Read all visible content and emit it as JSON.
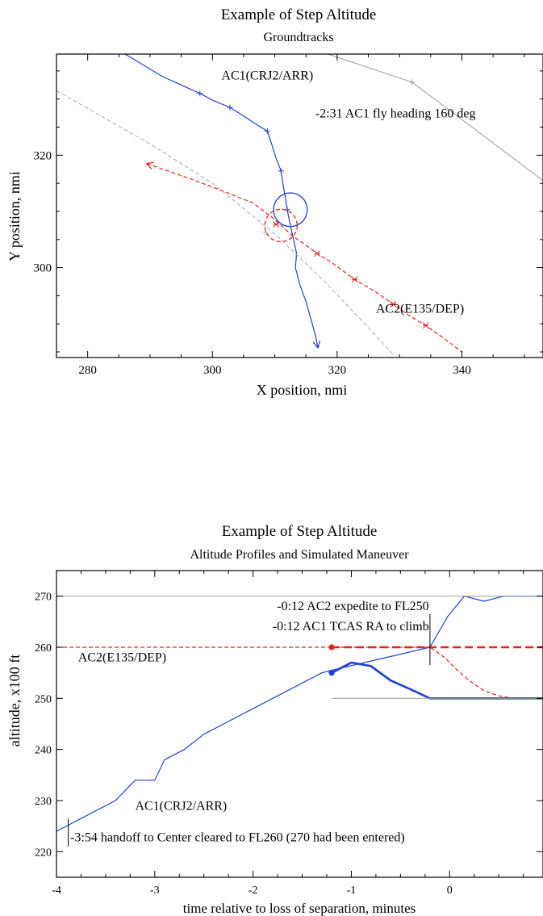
{
  "colors": {
    "ac1": "#1f3fd6",
    "ac2": "#e8231a",
    "ref_gray": "#999999",
    "ref_gray_dash": "#a8a8a8"
  },
  "charts": [
    {
      "type": "line",
      "title": "Example of Step Altitude",
      "subtitle": "Groundtracks",
      "xlabel": "X position, nmi",
      "ylabel": "Y position, nmi",
      "xlim": [
        275,
        353
      ],
      "ylim": [
        284,
        338
      ],
      "xticks": [
        280,
        300,
        320,
        340
      ],
      "yticks": [
        300,
        320
      ],
      "grid": false,
      "series": [
        {
          "name": "AC1(CRJ2/ARR)",
          "style": "solid-arrow",
          "color": "ac1",
          "x": [
            286,
            289,
            292,
            295,
            298,
            300,
            302.8,
            305,
            307,
            308.8,
            309.5,
            310.2,
            311,
            311.3,
            311.7,
            312,
            312.5,
            313,
            313.5,
            313.3,
            314,
            315,
            315.5,
            316,
            316.5,
            316.9
          ],
          "y": [
            338,
            336,
            334,
            332.5,
            331,
            329.8,
            328.5,
            327,
            325.5,
            324.3,
            322,
            319.5,
            317.2,
            315,
            312.5,
            310.3,
            307.5,
            305,
            302.5,
            300,
            297,
            294,
            292,
            290,
            288,
            285.8
          ],
          "marker_x": [
            298,
            302.8,
            308.8,
            311,
            312
          ],
          "marker_y": [
            331,
            328.5,
            324.3,
            317.2,
            310.3
          ]
        },
        {
          "name": "AC2(E135/DEP)",
          "style": "dashed-arrow",
          "color": "ac2",
          "x": [
            289.5,
            296,
            302,
            306.5,
            309.5,
            311.5,
            313,
            315,
            316.8,
            319,
            322.8,
            326,
            329,
            331.5,
            334.2,
            337,
            340
          ],
          "y": [
            318.5,
            316,
            313.5,
            311.5,
            309,
            307,
            305.5,
            304,
            302.5,
            301,
            297.9,
            295.8,
            293.5,
            291.5,
            289.7,
            287.5,
            285
          ],
          "marker_x": [
            310.2,
            316.8,
            322.8,
            329,
            334.2
          ],
          "marker_y": [
            307.7,
            302.5,
            297.9,
            293.5,
            289.7
          ]
        },
        {
          "style": "gray-solid",
          "color": "ref_gray",
          "x": [
            318.5,
            332,
            353
          ],
          "y": [
            338,
            333,
            315.5
          ],
          "marker_x": [
            332
          ],
          "marker_y": [
            333
          ]
        },
        {
          "style": "gray-dashed",
          "color": "ref_gray_dash",
          "x": [
            275,
            290,
            300,
            310,
            318,
            324,
            329
          ],
          "y": [
            331.5,
            322,
            315,
            306,
            297.5,
            290.5,
            284.5
          ],
          "marker_x": [
            308.5
          ],
          "marker_y": [
            306.3
          ]
        }
      ],
      "circles": [
        {
          "color": "ac1",
          "style": "solid",
          "cx": 312.5,
          "cy": 310.3,
          "r": 2.7
        },
        {
          "color": "ac2",
          "style": "dashed",
          "cx": 311,
          "cy": 307.5,
          "r": 2.6
        }
      ],
      "annotations": [
        {
          "text": "AC1(CRJ2/ARR)",
          "x": 308.8,
          "y": 333.5,
          "anchor": "middle"
        },
        {
          "text": "-2:31 AC1 fly heading 160 deg",
          "x": 316.5,
          "y": 326.7,
          "anchor": "start"
        },
        {
          "text": "AC2(E135/DEP)",
          "x": 326.2,
          "y": 292,
          "anchor": "start"
        }
      ]
    },
    {
      "type": "line",
      "title": "Example of Step Altitude",
      "subtitle": "Altitude Profiles and Simulated Maneuver",
      "xlabel": "time relative to loss of separation, minutes",
      "ylabel": "altitude, x100 ft",
      "xlim": [
        -4,
        0.95
      ],
      "ylim": [
        215,
        275
      ],
      "xticks": [
        -4,
        -3,
        -2,
        -1,
        0
      ],
      "yticks": [
        220,
        230,
        240,
        250,
        260,
        270
      ],
      "grid": false,
      "series": [
        {
          "name": "AC1(CRJ2/ARR)",
          "style": "solid",
          "color": "ac1",
          "x": [
            -4,
            -3.4,
            -3.2,
            -3,
            -2.9,
            -2.7,
            -2.5,
            -2.3,
            -1.3,
            -1.2,
            -0.2,
            -0.02,
            0.15,
            0.35,
            0.55,
            0.95
          ],
          "y": [
            224,
            230,
            234,
            234,
            238,
            240,
            243,
            245,
            255,
            255.5,
            260,
            266,
            270,
            269,
            270,
            270
          ]
        },
        {
          "style": "dashed",
          "color": "ac2",
          "x": [
            -4,
            -1.2,
            -0.2,
            -0.05,
            0.05,
            0.2,
            0.35,
            0.5,
            0.65,
            0.95
          ],
          "y": [
            260,
            260,
            260,
            258,
            256,
            253.5,
            251.5,
            250.5,
            250,
            250
          ]
        },
        {
          "style": "thick-solid",
          "color": "ac1",
          "x": [
            -1.2,
            -1,
            -0.8,
            -0.6,
            -0.4,
            -0.2,
            0.95
          ],
          "y": [
            255,
            257,
            256.3,
            253.5,
            251.8,
            250,
            250
          ]
        },
        {
          "style": "thick-dashed",
          "color": "ac2",
          "x": [
            -1.2,
            0.95
          ],
          "y": [
            260,
            260
          ]
        },
        {
          "style": "gray-solid",
          "color": "ref_gray",
          "x": [
            -4,
            0.95
          ],
          "y": [
            270,
            270
          ]
        },
        {
          "style": "gray-solid",
          "color": "ref_gray",
          "x": [
            -1.2,
            0.95
          ],
          "y": [
            250,
            250
          ]
        }
      ],
      "dots": [
        {
          "color": "ac2",
          "x": -1.2,
          "y": 260
        },
        {
          "color": "ac1",
          "x": -1.2,
          "y": 255
        }
      ],
      "event_lines": [
        {
          "x": -0.2,
          "y1": 256.5,
          "y2": 266.5
        },
        {
          "x": -3.88,
          "y1": 221,
          "y2": 226.5
        }
      ],
      "annotations": [
        {
          "text": "-0:12 AC2 expedite to FL250",
          "x": -0.21,
          "y": 267.3,
          "anchor": "end"
        },
        {
          "text": "-0:12 AC1 TCAS RA to climb",
          "x": -0.21,
          "y": 263.3,
          "anchor": "end"
        },
        {
          "text": "AC2(E135/DEP)",
          "x": -3.78,
          "y": 257.2,
          "anchor": "start"
        },
        {
          "text": "AC1(CRJ2/ARR)",
          "x": -3.2,
          "y": 228.2,
          "anchor": "start"
        },
        {
          "text": "-3:54 handoff to Center cleared to FL260 (270 had been entered)",
          "x": -3.86,
          "y": 222,
          "anchor": "start"
        }
      ]
    }
  ]
}
